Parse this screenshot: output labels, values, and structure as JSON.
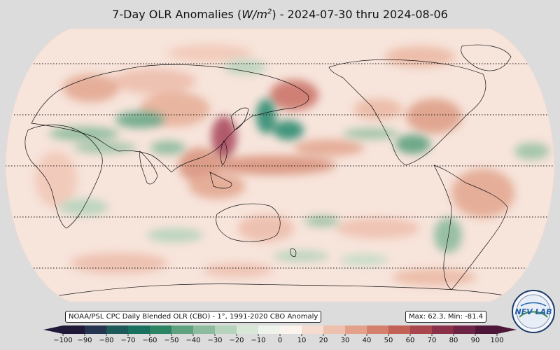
{
  "title": {
    "prefix": "7-Day OLR Anomalies (",
    "unit_base": "W/m",
    "unit_exp": "2",
    "suffix": ") - 2024-07-30 thru 2024-08-06"
  },
  "source_label": "NOAA/PSL CPC Daily Blended OLR (CBO) - 1°, 1991-2020 CBO Anomaly",
  "minmax_label": "Max: 62.3,  Min: -81.4",
  "logo_text": "NEV LAB",
  "colorbar": {
    "ticks": [
      "−100",
      "−90",
      "−80",
      "−70",
      "−60",
      "−50",
      "−40",
      "−30",
      "−20",
      "−10",
      "0",
      "10",
      "20",
      "30",
      "40",
      "50",
      "60",
      "70",
      "80",
      "90",
      "100"
    ],
    "colors": [
      "#1f1836",
      "#25344f",
      "#1e5959",
      "#19705c",
      "#2c8465",
      "#5ea280",
      "#8dbb9d",
      "#b6d3bb",
      "#d8e7d8",
      "#eef4ec",
      "#fbf3ee",
      "#f6dcd0",
      "#eec1ae",
      "#e3a18b",
      "#d4806c",
      "#c26156",
      "#a9454c",
      "#8a3049",
      "#6c2344",
      "#4e173a"
    ]
  },
  "map": {
    "projection": "robinson",
    "colors": {
      "ocean_base": "#f7e4db",
      "positive": "#d8917a",
      "strong_positive": "#b04a58",
      "negative": "#9cc3a6",
      "strong_negative": "#2f8c72",
      "coastline": "#111111",
      "background": "#dcdcdc"
    }
  }
}
